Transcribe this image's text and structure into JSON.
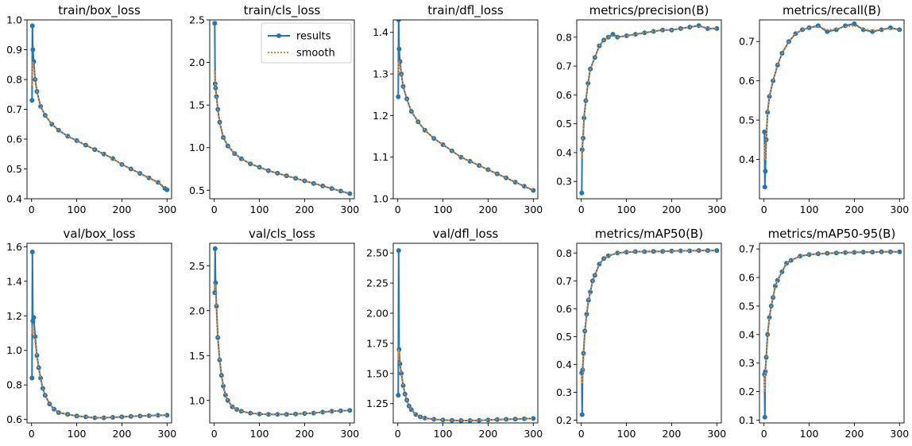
{
  "figure": {
    "background": "#ffffff"
  },
  "colors": {
    "results": "#1f77b4",
    "smooth": "#ff7f0e"
  },
  "legend": {
    "entries": [
      "results",
      "smooth"
    ],
    "placement": "upper-right",
    "panel": 1
  },
  "chart_data": [
    {
      "type": "line",
      "title": "train/box_loss",
      "xlim": [
        -10,
        310
      ],
      "ylim": [
        0.4,
        1.0
      ],
      "xticks": [
        0,
        100,
        200,
        300
      ],
      "xtick_labels": [
        "0",
        "100",
        "200",
        "300"
      ],
      "yticks": [
        0.4,
        0.5,
        0.6,
        0.7,
        0.8,
        0.9,
        1.0
      ],
      "ytick_labels": [
        "0.4",
        "0.5",
        "0.6",
        "0.7",
        "0.8",
        "0.9",
        "1.0"
      ],
      "x": [
        1,
        2,
        3,
        5,
        8,
        12,
        20,
        30,
        45,
        60,
        80,
        100,
        120,
        140,
        160,
        180,
        200,
        220,
        240,
        260,
        280,
        295,
        300
      ],
      "series": [
        {
          "name": "results",
          "values": [
            0.73,
            0.98,
            0.9,
            0.86,
            0.8,
            0.76,
            0.71,
            0.68,
            0.65,
            0.63,
            0.61,
            0.595,
            0.58,
            0.565,
            0.55,
            0.535,
            0.515,
            0.5,
            0.485,
            0.47,
            0.455,
            0.435,
            0.43
          ]
        },
        {
          "name": "smooth",
          "values": [
            0.78,
            0.86,
            0.86,
            0.84,
            0.8,
            0.76,
            0.71,
            0.68,
            0.65,
            0.63,
            0.61,
            0.595,
            0.58,
            0.565,
            0.55,
            0.535,
            0.515,
            0.5,
            0.485,
            0.47,
            0.455,
            0.44,
            0.435
          ]
        }
      ]
    },
    {
      "type": "line",
      "title": "train/cls_loss",
      "xlim": [
        -10,
        310
      ],
      "ylim": [
        0.4,
        2.5
      ],
      "xticks": [
        0,
        100,
        200,
        300
      ],
      "xtick_labels": [
        "0",
        "100",
        "200",
        "300"
      ],
      "yticks": [
        0.5,
        1.0,
        1.5,
        2.0,
        2.5
      ],
      "ytick_labels": [
        "0.5",
        "1.0",
        "1.5",
        "2.0",
        "2.5"
      ],
      "x": [
        1,
        2,
        3,
        5,
        8,
        12,
        20,
        30,
        45,
        60,
        80,
        100,
        120,
        140,
        160,
        180,
        200,
        220,
        240,
        260,
        280,
        300
      ],
      "series": [
        {
          "name": "results",
          "values": [
            2.46,
            1.75,
            1.7,
            1.6,
            1.45,
            1.3,
            1.12,
            1.02,
            0.93,
            0.87,
            0.81,
            0.77,
            0.73,
            0.7,
            0.67,
            0.64,
            0.61,
            0.58,
            0.55,
            0.52,
            0.49,
            0.46
          ]
        },
        {
          "name": "smooth",
          "values": [
            1.9,
            1.78,
            1.7,
            1.6,
            1.45,
            1.3,
            1.12,
            1.02,
            0.93,
            0.87,
            0.81,
            0.77,
            0.73,
            0.7,
            0.67,
            0.64,
            0.61,
            0.58,
            0.55,
            0.52,
            0.49,
            0.465
          ]
        }
      ]
    },
    {
      "type": "line",
      "title": "train/dfl_loss",
      "xlim": [
        -10,
        310
      ],
      "ylim": [
        1.0,
        1.43
      ],
      "xticks": [
        0,
        100,
        200,
        300
      ],
      "xtick_labels": [
        "0",
        "100",
        "200",
        "300"
      ],
      "yticks": [
        1.0,
        1.1,
        1.2,
        1.3,
        1.4
      ],
      "ytick_labels": [
        "1.0",
        "1.1",
        "1.2",
        "1.3",
        "1.4"
      ],
      "x": [
        1,
        2,
        3,
        5,
        8,
        12,
        20,
        30,
        45,
        60,
        80,
        100,
        120,
        140,
        160,
        180,
        200,
        220,
        240,
        260,
        280,
        300
      ],
      "series": [
        {
          "name": "results",
          "values": [
            1.245,
            1.43,
            1.36,
            1.33,
            1.3,
            1.27,
            1.24,
            1.21,
            1.185,
            1.165,
            1.145,
            1.13,
            1.115,
            1.1,
            1.09,
            1.08,
            1.07,
            1.06,
            1.05,
            1.04,
            1.03,
            1.02
          ]
        },
        {
          "name": "smooth",
          "values": [
            1.3,
            1.33,
            1.33,
            1.32,
            1.3,
            1.27,
            1.24,
            1.21,
            1.185,
            1.165,
            1.145,
            1.13,
            1.115,
            1.1,
            1.09,
            1.08,
            1.07,
            1.06,
            1.05,
            1.04,
            1.03,
            1.022
          ]
        }
      ]
    },
    {
      "type": "line",
      "title": "metrics/precision(B)",
      "xlim": [
        -10,
        310
      ],
      "ylim": [
        0.24,
        0.86
      ],
      "xticks": [
        0,
        100,
        200,
        300
      ],
      "xtick_labels": [
        "0",
        "100",
        "200",
        "300"
      ],
      "yticks": [
        0.3,
        0.4,
        0.5,
        0.6,
        0.7,
        0.8
      ],
      "ytick_labels": [
        "0.3",
        "0.4",
        "0.5",
        "0.6",
        "0.7",
        "0.8"
      ],
      "x": [
        1,
        2,
        4,
        6,
        10,
        15,
        20,
        30,
        40,
        50,
        60,
        70,
        80,
        100,
        120,
        140,
        160,
        180,
        200,
        220,
        240,
        260,
        280,
        300
      ],
      "series": [
        {
          "name": "results",
          "values": [
            0.26,
            0.41,
            0.45,
            0.52,
            0.58,
            0.64,
            0.69,
            0.73,
            0.77,
            0.79,
            0.8,
            0.81,
            0.8,
            0.805,
            0.81,
            0.815,
            0.82,
            0.825,
            0.825,
            0.83,
            0.835,
            0.84,
            0.83,
            0.83
          ]
        },
        {
          "name": "smooth",
          "values": [
            0.38,
            0.42,
            0.46,
            0.52,
            0.58,
            0.64,
            0.69,
            0.73,
            0.77,
            0.79,
            0.8,
            0.805,
            0.8,
            0.805,
            0.81,
            0.815,
            0.82,
            0.825,
            0.825,
            0.83,
            0.835,
            0.838,
            0.832,
            0.83
          ]
        }
      ]
    },
    {
      "type": "line",
      "title": "metrics/recall(B)",
      "xlim": [
        -10,
        310
      ],
      "ylim": [
        0.3,
        0.755
      ],
      "xticks": [
        0,
        100,
        200,
        300
      ],
      "xtick_labels": [
        "0",
        "100",
        "200",
        "300"
      ],
      "yticks": [
        0.4,
        0.5,
        0.6,
        0.7
      ],
      "ytick_labels": [
        "0.4",
        "0.5",
        "0.6",
        "0.7"
      ],
      "x": [
        1,
        2,
        3,
        5,
        8,
        12,
        20,
        30,
        40,
        55,
        70,
        85,
        100,
        120,
        140,
        160,
        180,
        200,
        220,
        240,
        260,
        280,
        300
      ],
      "series": [
        {
          "name": "results",
          "values": [
            0.47,
            0.33,
            0.37,
            0.45,
            0.52,
            0.56,
            0.6,
            0.64,
            0.67,
            0.7,
            0.72,
            0.73,
            0.735,
            0.74,
            0.725,
            0.73,
            0.74,
            0.745,
            0.73,
            0.725,
            0.73,
            0.735,
            0.73
          ]
        },
        {
          "name": "smooth",
          "values": [
            0.44,
            0.4,
            0.4,
            0.45,
            0.52,
            0.56,
            0.6,
            0.64,
            0.67,
            0.7,
            0.72,
            0.73,
            0.735,
            0.738,
            0.73,
            0.732,
            0.738,
            0.74,
            0.732,
            0.728,
            0.73,
            0.733,
            0.73
          ]
        }
      ]
    },
    {
      "type": "line",
      "title": "val/box_loss",
      "xlim": [
        -10,
        310
      ],
      "ylim": [
        0.58,
        1.62
      ],
      "xticks": [
        0,
        100,
        200,
        300
      ],
      "xtick_labels": [
        "0",
        "100",
        "200",
        "300"
      ],
      "yticks": [
        0.6,
        0.8,
        1.0,
        1.2,
        1.4,
        1.6
      ],
      "ytick_labels": [
        "0.6",
        "0.8",
        "1.0",
        "1.2",
        "1.4",
        "1.6"
      ],
      "x": [
        1,
        2,
        3,
        5,
        8,
        12,
        16,
        20,
        25,
        30,
        40,
        50,
        60,
        80,
        100,
        120,
        140,
        160,
        180,
        200,
        220,
        240,
        260,
        280,
        300
      ],
      "series": [
        {
          "name": "results",
          "values": [
            0.84,
            1.57,
            1.17,
            1.19,
            1.08,
            0.97,
            0.9,
            0.84,
            0.78,
            0.74,
            0.69,
            0.66,
            0.64,
            0.63,
            0.62,
            0.615,
            0.61,
            0.61,
            0.612,
            0.615,
            0.618,
            0.62,
            0.622,
            0.624,
            0.625
          ]
        },
        {
          "name": "smooth",
          "values": [
            1.1,
            1.14,
            1.12,
            1.1,
            1.05,
            0.96,
            0.89,
            0.84,
            0.78,
            0.74,
            0.69,
            0.66,
            0.64,
            0.63,
            0.62,
            0.615,
            0.61,
            0.61,
            0.612,
            0.615,
            0.618,
            0.62,
            0.622,
            0.624,
            0.625
          ]
        }
      ]
    },
    {
      "type": "line",
      "title": "val/cls_loss",
      "xlim": [
        -10,
        310
      ],
      "ylim": [
        0.75,
        2.75
      ],
      "xticks": [
        0,
        100,
        200,
        300
      ],
      "xtick_labels": [
        "0",
        "100",
        "200",
        "300"
      ],
      "yticks": [
        1.0,
        1.5,
        2.0,
        2.5
      ],
      "ytick_labels": [
        "1.0",
        "1.5",
        "2.0",
        "2.5"
      ],
      "x": [
        1,
        2,
        3,
        5,
        8,
        12,
        16,
        20,
        25,
        30,
        40,
        50,
        60,
        80,
        100,
        120,
        140,
        160,
        180,
        200,
        220,
        240,
        260,
        280,
        300
      ],
      "series": [
        {
          "name": "results",
          "values": [
            2.2,
            2.69,
            2.31,
            2.05,
            1.7,
            1.45,
            1.28,
            1.16,
            1.06,
            1.0,
            0.93,
            0.9,
            0.88,
            0.86,
            0.85,
            0.845,
            0.845,
            0.845,
            0.85,
            0.855,
            0.86,
            0.87,
            0.88,
            0.885,
            0.89
          ]
        },
        {
          "name": "smooth",
          "values": [
            2.25,
            2.3,
            2.2,
            2.02,
            1.7,
            1.45,
            1.28,
            1.16,
            1.06,
            1.0,
            0.93,
            0.9,
            0.88,
            0.86,
            0.85,
            0.845,
            0.845,
            0.845,
            0.85,
            0.855,
            0.86,
            0.87,
            0.88,
            0.885,
            0.89
          ]
        }
      ]
    },
    {
      "type": "line",
      "title": "val/dfl_loss",
      "xlim": [
        -10,
        310
      ],
      "ylim": [
        1.09,
        2.58
      ],
      "xticks": [
        0,
        100,
        200,
        300
      ],
      "xtick_labels": [
        "0",
        "100",
        "200",
        "300"
      ],
      "yticks": [
        1.25,
        1.5,
        1.75,
        2.0,
        2.25,
        2.5
      ],
      "ytick_labels": [
        "1.25",
        "1.50",
        "1.75",
        "2.00",
        "2.25",
        "2.50"
      ],
      "x": [
        1,
        2,
        3,
        5,
        8,
        12,
        16,
        20,
        25,
        30,
        40,
        50,
        60,
        80,
        100,
        120,
        140,
        160,
        180,
        200,
        220,
        240,
        260,
        280,
        300
      ],
      "series": [
        {
          "name": "results",
          "values": [
            1.32,
            2.52,
            1.7,
            1.58,
            1.5,
            1.4,
            1.33,
            1.28,
            1.23,
            1.2,
            1.16,
            1.14,
            1.13,
            1.12,
            1.115,
            1.112,
            1.11,
            1.11,
            1.112,
            1.115,
            1.118,
            1.12,
            1.122,
            1.125,
            1.127
          ]
        },
        {
          "name": "smooth",
          "values": [
            1.62,
            1.7,
            1.62,
            1.56,
            1.49,
            1.4,
            1.33,
            1.28,
            1.23,
            1.2,
            1.16,
            1.14,
            1.13,
            1.12,
            1.115,
            1.112,
            1.11,
            1.11,
            1.112,
            1.115,
            1.118,
            1.12,
            1.122,
            1.125,
            1.127
          ]
        }
      ]
    },
    {
      "type": "line",
      "title": "metrics/mAP50(B)",
      "xlim": [
        -10,
        310
      ],
      "ylim": [
        0.19,
        0.835
      ],
      "xticks": [
        0,
        100,
        200,
        300
      ],
      "xtick_labels": [
        "0",
        "100",
        "200",
        "300"
      ],
      "yticks": [
        0.2,
        0.3,
        0.4,
        0.5,
        0.6,
        0.7,
        0.8
      ],
      "ytick_labels": [
        "0.2",
        "0.3",
        "0.4",
        "0.5",
        "0.6",
        "0.7",
        "0.8"
      ],
      "x": [
        1,
        2,
        3,
        5,
        8,
        12,
        16,
        20,
        25,
        30,
        40,
        50,
        60,
        80,
        100,
        120,
        140,
        160,
        180,
        200,
        220,
        240,
        260,
        280,
        300
      ],
      "series": [
        {
          "name": "results",
          "values": [
            0.37,
            0.22,
            0.38,
            0.44,
            0.52,
            0.58,
            0.63,
            0.66,
            0.7,
            0.72,
            0.76,
            0.78,
            0.79,
            0.8,
            0.803,
            0.805,
            0.805,
            0.806,
            0.806,
            0.807,
            0.808,
            0.808,
            0.809,
            0.809,
            0.809
          ]
        },
        {
          "name": "smooth",
          "values": [
            0.36,
            0.33,
            0.36,
            0.43,
            0.51,
            0.58,
            0.63,
            0.66,
            0.7,
            0.72,
            0.76,
            0.78,
            0.79,
            0.8,
            0.803,
            0.805,
            0.805,
            0.806,
            0.806,
            0.807,
            0.808,
            0.808,
            0.809,
            0.809,
            0.809
          ]
        }
      ]
    },
    {
      "type": "line",
      "title": "metrics/mAP50-95(B)",
      "xlim": [
        -10,
        310
      ],
      "ylim": [
        0.09,
        0.72
      ],
      "xticks": [
        0,
        100,
        200,
        300
      ],
      "xtick_labels": [
        "0",
        "100",
        "200",
        "300"
      ],
      "yticks": [
        0.1,
        0.2,
        0.3,
        0.4,
        0.5,
        0.6,
        0.7
      ],
      "ytick_labels": [
        "0.1",
        "0.2",
        "0.3",
        "0.4",
        "0.5",
        "0.6",
        "0.7"
      ],
      "x": [
        1,
        2,
        3,
        5,
        8,
        12,
        16,
        20,
        25,
        30,
        40,
        50,
        60,
        80,
        100,
        120,
        140,
        160,
        180,
        200,
        220,
        240,
        260,
        280,
        300
      ],
      "series": [
        {
          "name": "results",
          "values": [
            0.26,
            0.11,
            0.27,
            0.32,
            0.4,
            0.46,
            0.5,
            0.53,
            0.57,
            0.59,
            0.62,
            0.65,
            0.66,
            0.675,
            0.68,
            0.683,
            0.685,
            0.686,
            0.687,
            0.688,
            0.689,
            0.689,
            0.69,
            0.69,
            0.69
          ]
        },
        {
          "name": "smooth",
          "values": [
            0.26,
            0.2,
            0.25,
            0.31,
            0.39,
            0.46,
            0.5,
            0.53,
            0.57,
            0.59,
            0.62,
            0.65,
            0.66,
            0.675,
            0.68,
            0.683,
            0.685,
            0.686,
            0.687,
            0.688,
            0.689,
            0.689,
            0.69,
            0.69,
            0.69
          ]
        }
      ]
    }
  ]
}
